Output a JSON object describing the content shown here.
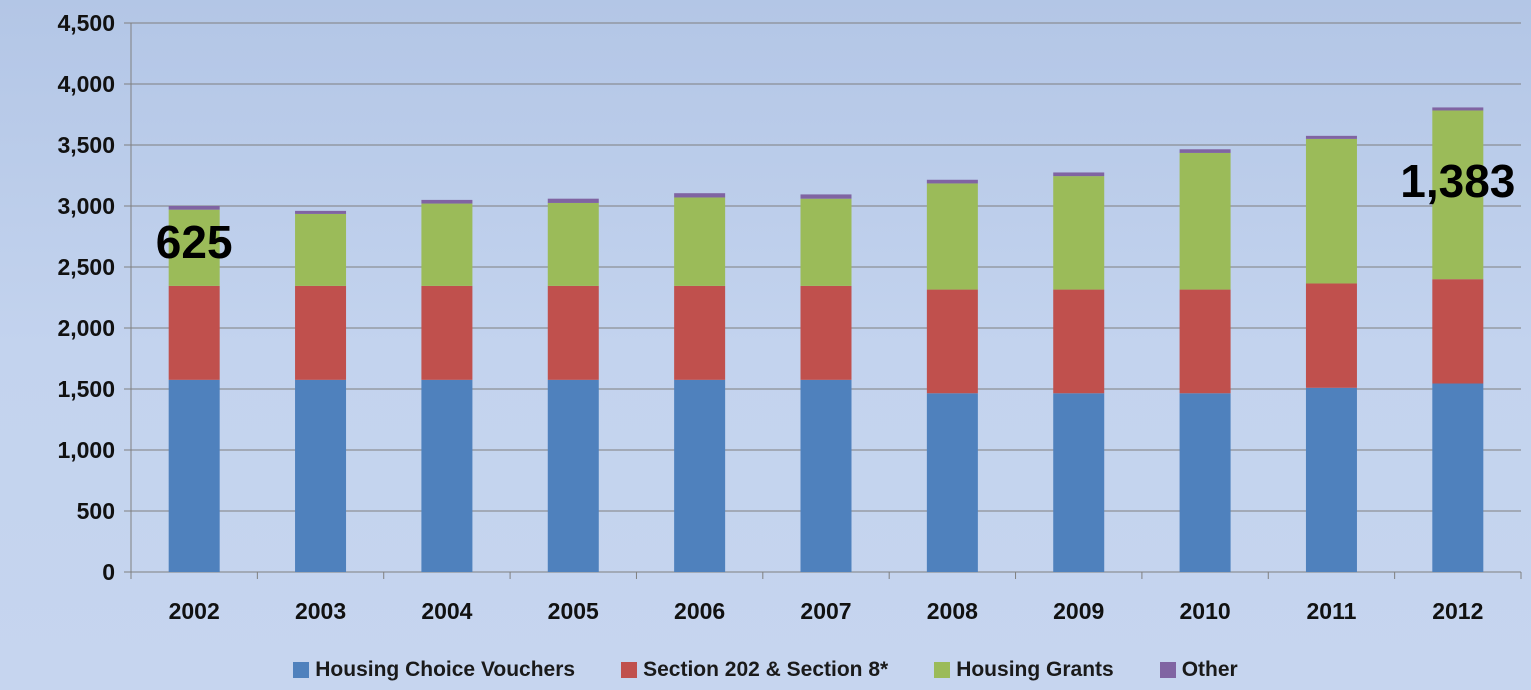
{
  "chart_data": {
    "type": "bar",
    "stacked": true,
    "categories": [
      "2002",
      "2003",
      "2004",
      "2005",
      "2006",
      "2007",
      "2008",
      "2009",
      "2010",
      "2011",
      "2012"
    ],
    "series": [
      {
        "name": "Housing Choice Vouchers",
        "color": "#4f81bd",
        "values": [
          1575,
          1575,
          1575,
          1575,
          1575,
          1575,
          1465,
          1465,
          1465,
          1510,
          1545
        ]
      },
      {
        "name": "Section 202 & Section 8*",
        "color": "#c0504d",
        "values": [
          770,
          770,
          770,
          770,
          770,
          770,
          850,
          850,
          850,
          855,
          855
        ]
      },
      {
        "name": "Housing Grants",
        "color": "#9bbb59",
        "values": [
          625,
          590,
          675,
          680,
          725,
          715,
          870,
          930,
          1120,
          1185,
          1383
        ]
      },
      {
        "name": "Other",
        "color": "#8064a2",
        "values": [
          30,
          25,
          30,
          35,
          35,
          35,
          30,
          30,
          30,
          25,
          25
        ]
      }
    ],
    "ylim": [
      0,
      4500
    ],
    "yticks": [
      "0",
      "500",
      "1,000",
      "1,500",
      "2,000",
      "2,500",
      "3,000",
      "3,500",
      "4,000",
      "4,500"
    ],
    "grid": true,
    "legend_position": "bottom",
    "annotations": [
      {
        "text": "625",
        "category": "2002",
        "y": 2575
      },
      {
        "text": "1,383",
        "category": "2012",
        "y": 3075
      }
    ],
    "title": "",
    "xlabel": "",
    "ylabel": ""
  }
}
